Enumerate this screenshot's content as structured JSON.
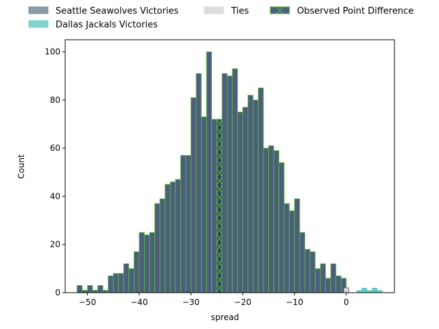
{
  "chart_data": {
    "type": "bar",
    "xlabel": "spread",
    "ylabel": "Count",
    "xlim": [
      -54.3,
      9.3
    ],
    "ylim": [
      0,
      105
    ],
    "x_ticks": [
      -50,
      -40,
      -30,
      -20,
      -10,
      0
    ],
    "y_ticks": [
      0,
      20,
      40,
      60,
      80,
      100
    ],
    "x_tick_labels": [
      "−50",
      "−40",
      "−30",
      "−20",
      "−10",
      "0"
    ],
    "y_tick_labels": [
      "0",
      "20",
      "40",
      "60",
      "80",
      "100"
    ],
    "bin_width": 1,
    "legend": {
      "placement": "top",
      "entries": [
        {
          "label": "Seattle Seawolves Victories",
          "color": "#8a99a8",
          "edge": "#8a99a8",
          "hatch": false
        },
        {
          "label": "Dallas Jackals Victories",
          "color": "#7fd3cc",
          "edge": "#7fd3cc",
          "hatch": false
        },
        {
          "label": "Ties",
          "color": "#dddddd",
          "edge": "#dddddd",
          "hatch": false
        },
        {
          "label": "Observed Point Difference",
          "color": "#4c5f7a",
          "edge": "#5bbf3c",
          "hatch": true
        }
      ]
    },
    "colors": {
      "seattle": "#4c5f7a",
      "seattle_edge": "#5bbf3c",
      "dallas": "#5cc9bd",
      "ties": "#d9d9d9",
      "observed": "#2e4466",
      "observed_hatch": "#5bbf3c"
    },
    "series": [
      {
        "name": "Seattle Seawolves Victories",
        "bins": [
          [
            -52,
            3
          ],
          [
            -51,
            1
          ],
          [
            -50,
            3
          ],
          [
            -49,
            1
          ],
          [
            -48,
            3
          ],
          [
            -47,
            1
          ],
          [
            -46,
            7
          ],
          [
            -45,
            8
          ],
          [
            -44,
            8
          ],
          [
            -43,
            12
          ],
          [
            -42,
            10
          ],
          [
            -41,
            17
          ],
          [
            -40,
            25
          ],
          [
            -39,
            24
          ],
          [
            -38,
            25
          ],
          [
            -37,
            37
          ],
          [
            -36,
            39
          ],
          [
            -35,
            45
          ],
          [
            -34,
            46
          ],
          [
            -33,
            47
          ],
          [
            -32,
            57
          ],
          [
            -31,
            57
          ],
          [
            -30,
            81
          ],
          [
            -29,
            91
          ],
          [
            -28,
            73
          ],
          [
            -27,
            100
          ],
          [
            -26,
            72
          ],
          [
            -25,
            72
          ],
          [
            -24,
            91
          ],
          [
            -23,
            90
          ],
          [
            -22,
            93
          ],
          [
            -21,
            75
          ],
          [
            -20,
            77
          ],
          [
            -19,
            82
          ],
          [
            -18,
            80
          ],
          [
            -17,
            85
          ],
          [
            -16,
            60
          ],
          [
            -15,
            61
          ],
          [
            -14,
            59
          ],
          [
            -13,
            54
          ],
          [
            -12,
            37
          ],
          [
            -11,
            34
          ],
          [
            -10,
            39
          ],
          [
            -9,
            25
          ],
          [
            -8,
            18
          ],
          [
            -7,
            17
          ],
          [
            -6,
            10
          ],
          [
            -5,
            12
          ],
          [
            -4,
            6
          ],
          [
            -3,
            12
          ],
          [
            -2,
            7
          ],
          [
            -1,
            6
          ],
          [
            0,
            0
          ]
        ]
      },
      {
        "name": "Dallas Jackals Victories",
        "bins": [
          [
            2,
            1
          ],
          [
            3,
            2
          ],
          [
            4,
            1
          ],
          [
            5,
            2
          ],
          [
            6,
            1
          ]
        ]
      },
      {
        "name": "Ties",
        "bins": [
          [
            -0.5,
            2
          ]
        ]
      }
    ],
    "observed_bin": {
      "x": -25,
      "value": 72
    }
  }
}
